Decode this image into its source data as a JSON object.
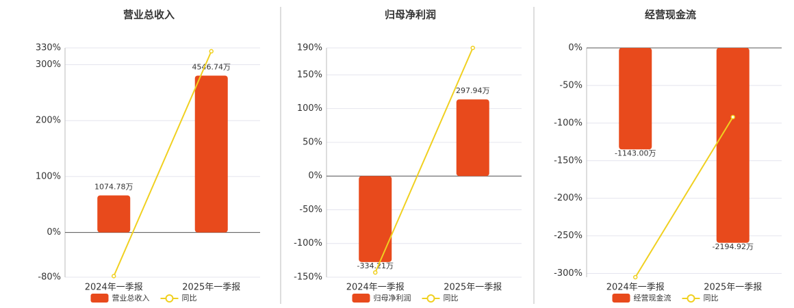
{
  "chart_data": [
    {
      "type": "bar",
      "title": "营业总收入",
      "categories": [
        "2024年一季报",
        "2025年一季报"
      ],
      "series": [
        {
          "name": "营业总收入",
          "color": "#e84a1c",
          "values": [
            1074.78,
            4546.74
          ],
          "value_labels": [
            "1074.78万",
            "4546.74万"
          ]
        },
        {
          "name": "同比",
          "type": "line",
          "color": "#f0d020",
          "values": [
            -78,
            324
          ]
        }
      ],
      "ylim": [
        -80,
        330
      ],
      "yticks": [
        {
          "value": -80,
          "label": "-80%"
        },
        {
          "value": 0,
          "label": "0%"
        },
        {
          "value": 100,
          "label": "100%"
        },
        {
          "value": 200,
          "label": "200%"
        },
        {
          "value": 300,
          "label": "300%"
        },
        {
          "value": 330,
          "label": "330%"
        }
      ],
      "grid": true
    },
    {
      "type": "bar",
      "title": "归母净利润",
      "categories": [
        "2024年一季报",
        "2025年一季报"
      ],
      "series": [
        {
          "name": "归母净利润",
          "color": "#e84a1c",
          "values": [
            -334.21,
            297.94
          ],
          "value_labels": [
            "-334.21万",
            "297.94万"
          ]
        },
        {
          "name": "同比",
          "type": "line",
          "color": "#f0d020",
          "values": [
            -143,
            190
          ]
        }
      ],
      "ylim": [
        -150,
        190
      ],
      "yticks": [
        {
          "value": -150,
          "label": "-150%"
        },
        {
          "value": -100,
          "label": "-100%"
        },
        {
          "value": -50,
          "label": "-50%"
        },
        {
          "value": 0,
          "label": "0%"
        },
        {
          "value": 50,
          "label": "50%"
        },
        {
          "value": 100,
          "label": "100%"
        },
        {
          "value": 150,
          "label": "150%"
        },
        {
          "value": 190,
          "label": "190%"
        }
      ],
      "grid": true
    },
    {
      "type": "bar",
      "title": "经营现金流",
      "categories": [
        "2024年一季报",
        "2025年一季报"
      ],
      "series": [
        {
          "name": "经营现金流",
          "color": "#e84a1c",
          "values": [
            -1143.0,
            -2194.92
          ],
          "value_labels": [
            "-1143.00万",
            "-2194.92万"
          ]
        },
        {
          "name": "同比",
          "type": "line",
          "color": "#f0d020",
          "values": [
            -305,
            -92
          ]
        }
      ],
      "ylim": [
        -305,
        0
      ],
      "yticks": [
        {
          "value": -300,
          "label": "-300%"
        },
        {
          "value": -250,
          "label": "-250%"
        },
        {
          "value": -200,
          "label": "-200%"
        },
        {
          "value": -150,
          "label": "-150%"
        },
        {
          "value": -100,
          "label": "-100%"
        },
        {
          "value": -50,
          "label": "-50%"
        },
        {
          "value": 0,
          "label": "0%"
        }
      ],
      "grid": true
    }
  ]
}
